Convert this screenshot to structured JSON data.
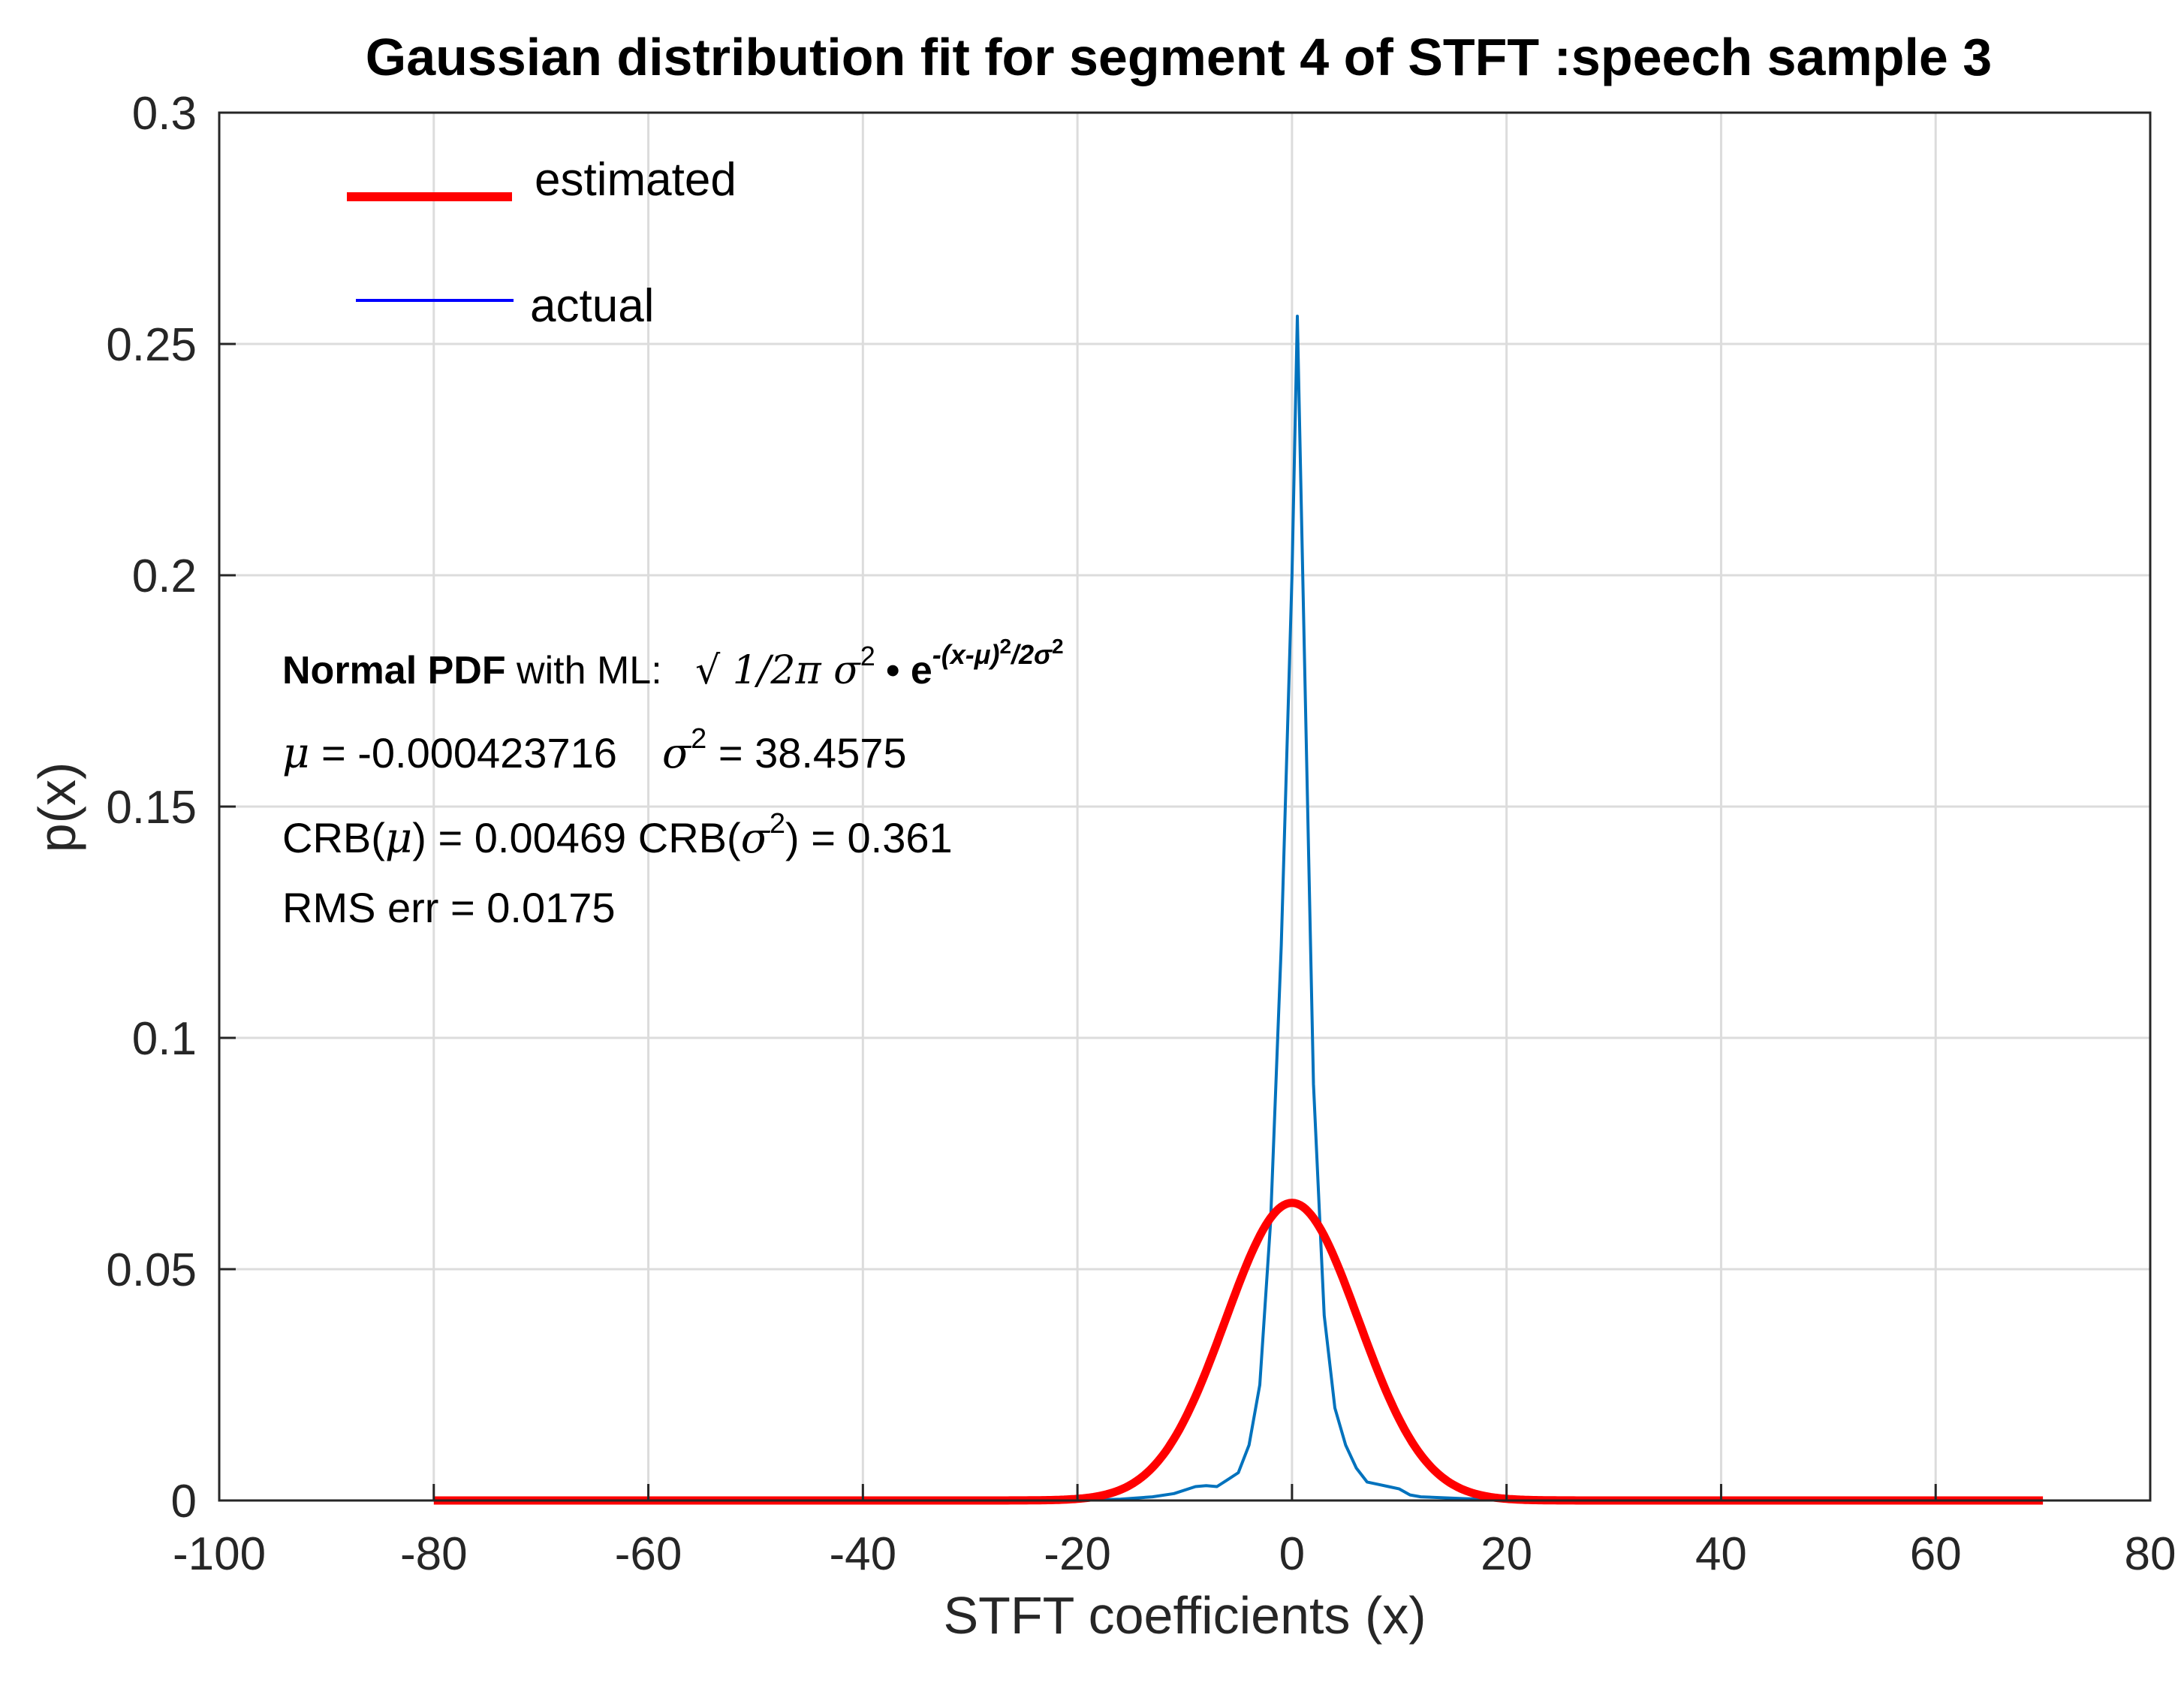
{
  "chart_data": {
    "type": "line",
    "title": "Gaussian distribution fit for segment 4 of STFT :speech sample 3",
    "xlabel": "STFT coefficients (x)",
    "ylabel": "p(x)",
    "xlim": [
      -100,
      80
    ],
    "ylim": [
      0,
      0.3
    ],
    "grid": true,
    "xticks": [
      -100,
      -80,
      -60,
      -40,
      -20,
      0,
      20,
      40,
      60,
      80
    ],
    "yticks": [
      0,
      0.05,
      0.1,
      0.15,
      0.2,
      0.25,
      0.3
    ],
    "xtick_labels": [
      "-100",
      "-80",
      "-60",
      "-40",
      "-20",
      "0",
      "20",
      "40",
      "60",
      "80"
    ],
    "ytick_labels": [
      "0",
      "0.05",
      "0.1",
      "0.15",
      "0.2",
      "0.25",
      "0.3"
    ],
    "legend_position": "top-left",
    "series": [
      {
        "name": "estimated",
        "color": "#ff0000",
        "kind": "gaussian",
        "mu": -0.000423716,
        "sigma2": 38.4575,
        "x_range": [
          -80,
          70
        ]
      },
      {
        "name": "actual",
        "color": "#0072bd",
        "x": [
          -80,
          -40,
          -20,
          -16,
          -13,
          -11,
          -9,
          -8,
          -7,
          -6,
          -5,
          -4,
          -3,
          -2,
          -1,
          0,
          0.5,
          1,
          2,
          3,
          4,
          5,
          6,
          7,
          8,
          9,
          10,
          11,
          12,
          16,
          20,
          40,
          70
        ],
        "y": [
          0,
          0,
          0,
          0.0003,
          0.0008,
          0.0015,
          0.003,
          0.0032,
          0.003,
          0.0045,
          0.006,
          0.012,
          0.025,
          0.06,
          0.12,
          0.2,
          0.256,
          0.2,
          0.09,
          0.04,
          0.02,
          0.012,
          0.007,
          0.004,
          0.0035,
          0.003,
          0.0025,
          0.0012,
          0.0008,
          0.0004,
          0.0001,
          0,
          0
        ]
      }
    ],
    "annotation": {
      "formula_bold": "Normal PDF",
      "formula_mid": " with ML:",
      "mu_line_a": " = -0.000423716",
      "mu_line_b": " = 38.4575",
      "crb_line_a": "CRB(",
      "crb_line_b": ") = 0.00469  CRB(",
      "crb_line_c": ") = 0.361",
      "rms_line": "RMS err = 0.0175"
    }
  }
}
